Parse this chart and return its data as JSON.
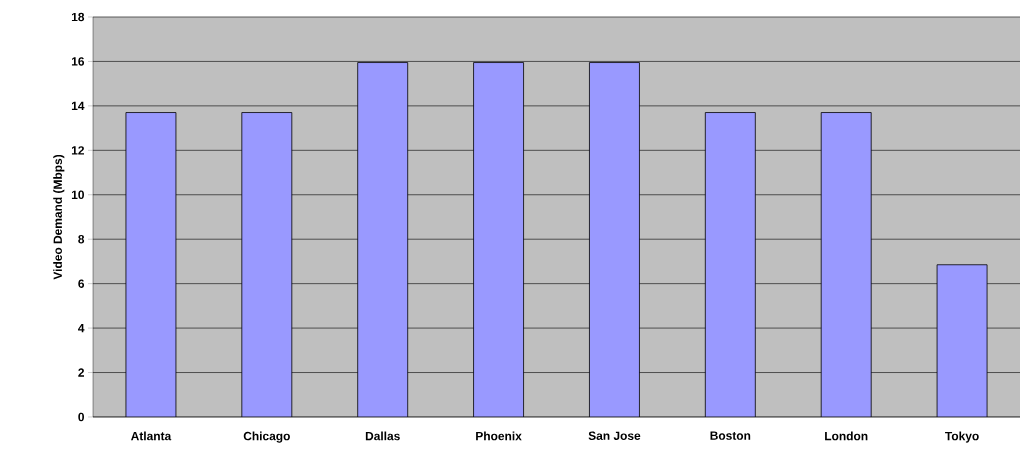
{
  "chart_data": {
    "type": "bar",
    "ylabel": "Video Demand (Mbps)",
    "categories": [
      "Atlanta",
      "Chicago",
      "Dallas",
      "Phoenix",
      "San Jose",
      "Boston",
      "London",
      "Tokyo"
    ],
    "values": [
      13.7,
      13.7,
      15.95,
      15.95,
      15.95,
      13.7,
      13.7,
      6.85
    ],
    "color": "#9999ff",
    "ylim": [
      0,
      18
    ],
    "yticks": [
      0,
      2,
      4,
      6,
      8,
      10,
      12,
      14,
      16,
      18
    ],
    "grid": "y"
  }
}
